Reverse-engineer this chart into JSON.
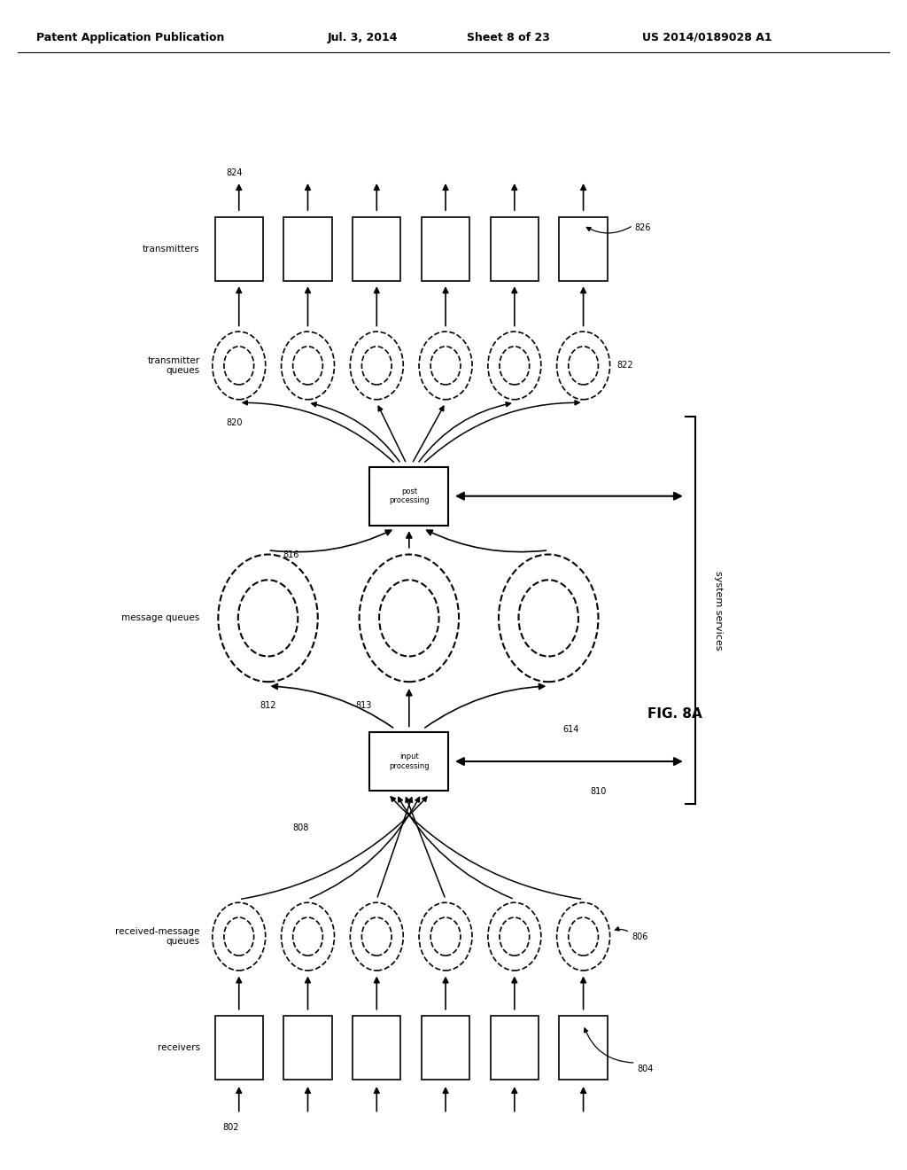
{
  "bg_color": "#ffffff",
  "header_text": "Patent Application Publication",
  "header_date": "Jul. 3, 2014",
  "header_sheet": "Sheet 8 of 23",
  "header_patent": "US 2014/0189028 A1",
  "fig_label": "FIG. 8A"
}
